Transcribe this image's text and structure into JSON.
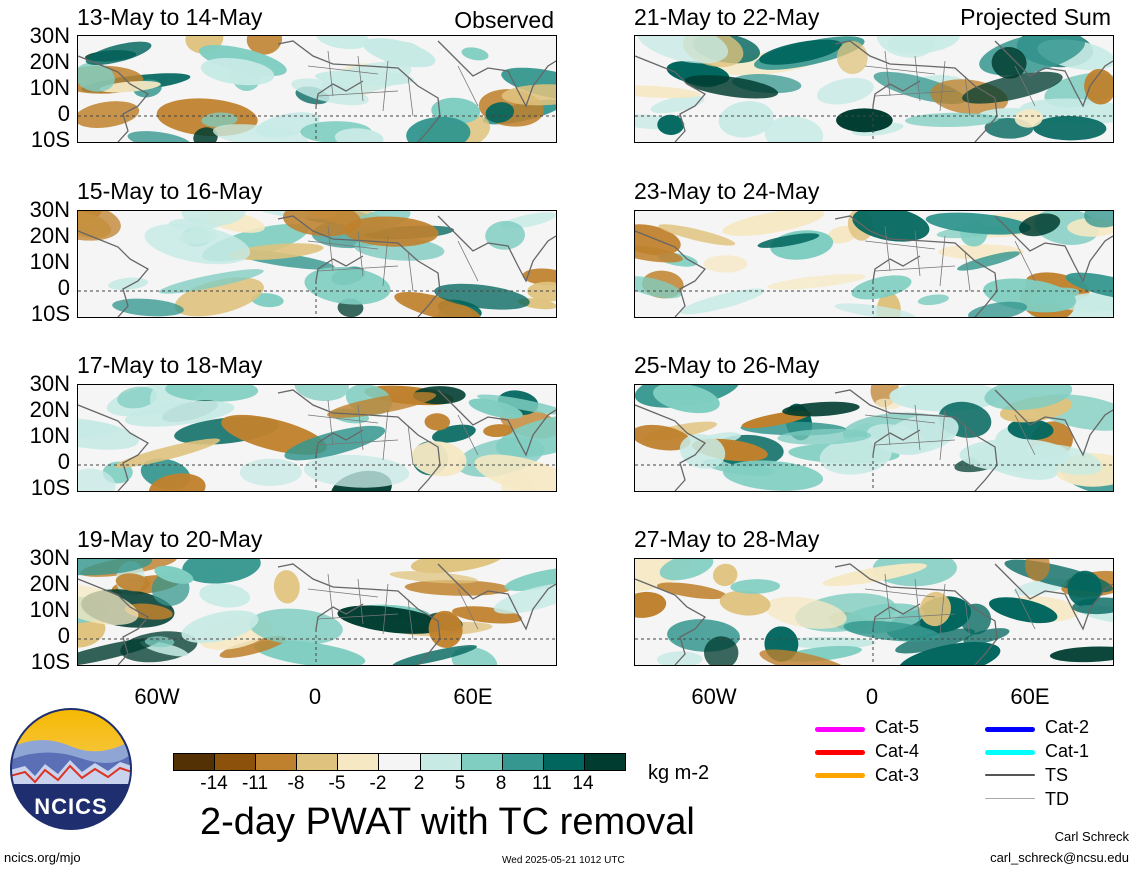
{
  "panels": {
    "left": [
      {
        "title": "13-May to 14-May",
        "tag": "Observed"
      },
      {
        "title": "15-May to 16-May",
        "tag": ""
      },
      {
        "title": "17-May to 18-May",
        "tag": ""
      },
      {
        "title": "19-May to 20-May",
        "tag": ""
      }
    ],
    "right": [
      {
        "title": "21-May to 22-May",
        "tag": "Projected Sum"
      },
      {
        "title": "23-May to 24-May",
        "tag": ""
      },
      {
        "title": "25-May to 26-May",
        "tag": ""
      },
      {
        "title": "27-May to 28-May",
        "tag": ""
      }
    ]
  },
  "lat_labels": [
    "30N",
    "20N",
    "10N",
    "0",
    "10S"
  ],
  "lon_labels": [
    "60W",
    "0",
    "60E"
  ],
  "colorbar": {
    "ticks": [
      "-14",
      "-11",
      "-8",
      "-5",
      "-2",
      "2",
      "5",
      "8",
      "11",
      "14"
    ],
    "colors": [
      "#543005",
      "#8c510a",
      "#bf812d",
      "#dfc27d",
      "#f6e8c3",
      "#f5f5f5",
      "#c7eae5",
      "#80cdc1",
      "#35978f",
      "#01665e",
      "#003c30"
    ],
    "unit": "kg m-2"
  },
  "title": "2-day PWAT with TC removal",
  "legend": [
    {
      "label": "Cat-5",
      "color": "#ff00ff"
    },
    {
      "label": "Cat-4",
      "color": "#ff0000"
    },
    {
      "label": "Cat-3",
      "color": "#ffa500"
    },
    {
      "label": "Cat-2",
      "color": "#0000ff"
    },
    {
      "label": "Cat-1",
      "color": "#00ffff"
    },
    {
      "label": "TS",
      "color": "#555555"
    },
    {
      "label": "TD",
      "color": "#aaaaaa"
    }
  ],
  "logo": {
    "text": "NCICS"
  },
  "footer": {
    "left": "ncics.org/mjo",
    "center": "Wed 2025-05-21 1012 UTC",
    "author": "Carl Schreck",
    "email": "carl_schreck@ncsu.edu"
  }
}
